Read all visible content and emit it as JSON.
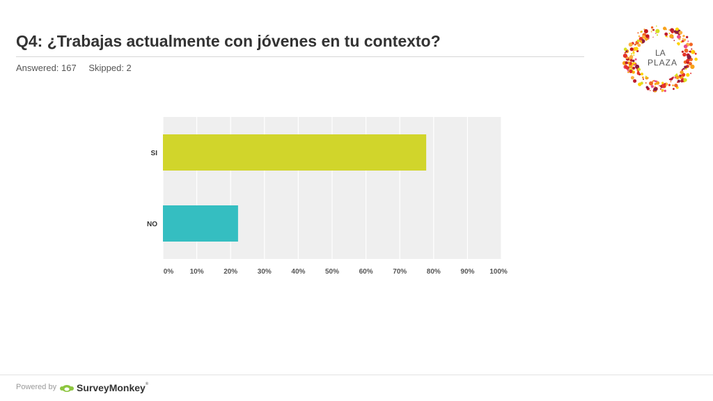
{
  "header": {
    "title": "Q4: ¿Trabajas actualmente con jóvenes en tu contexto?",
    "answered": "Answered: 167",
    "skipped": "Skipped: 2"
  },
  "logo": {
    "line1": "LA",
    "line2": "PLAZA"
  },
  "footer": {
    "powered_by": "Powered by",
    "brand": "SurveyMonkey",
    "trademark": "®"
  },
  "chart_data": {
    "type": "bar",
    "orientation": "horizontal",
    "categories": [
      "SI",
      "NO"
    ],
    "values": [
      77.8,
      22.2
    ],
    "colors": [
      "#d1d52b",
      "#35bec1"
    ],
    "x_ticks": [
      "0%",
      "10%",
      "20%",
      "30%",
      "40%",
      "50%",
      "60%",
      "70%",
      "80%",
      "90%",
      "100%"
    ],
    "xlim": [
      0,
      100
    ],
    "grid": true,
    "background": "#efefef"
  }
}
